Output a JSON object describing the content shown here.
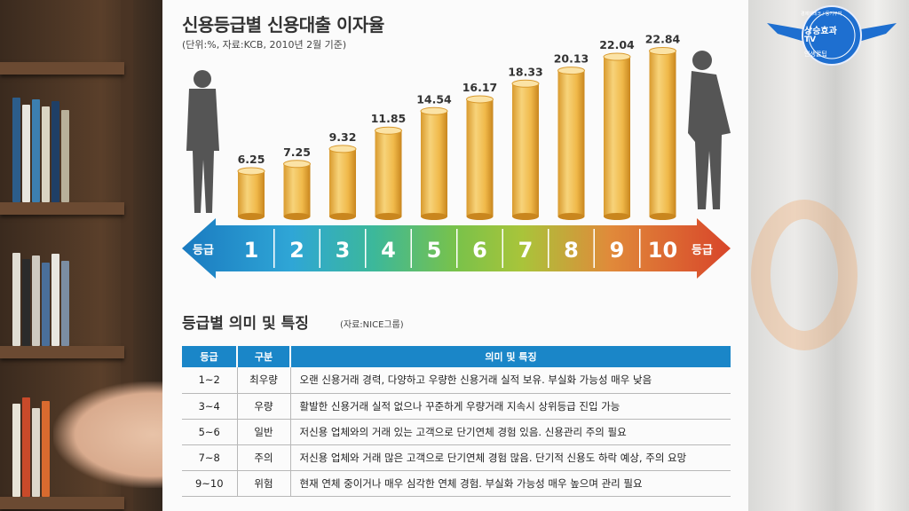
{
  "chart_data": {
    "type": "bar",
    "title": "신용등급별 신용대출 이자율",
    "subtitle": "(단위:%, 자료:KCB, 2010년 2월 기준)",
    "categories": [
      "1",
      "2",
      "3",
      "4",
      "5",
      "6",
      "7",
      "8",
      "9",
      "10"
    ],
    "values": [
      6.25,
      7.25,
      9.32,
      11.85,
      14.54,
      16.17,
      18.33,
      20.13,
      22.04,
      22.84
    ],
    "value_labels": [
      "6.25",
      "7.25",
      "9.32",
      "11.85",
      "14.54",
      "16.17",
      "18.33",
      "20.13",
      "22.04",
      "22.84"
    ],
    "axis_end_label_left": "등급",
    "axis_end_label_right": "등급",
    "ylim": [
      0,
      24
    ],
    "grid": false,
    "bar_color": "#f2c15a",
    "arrow_colors": [
      "#1a7ac0",
      "#2fa6d6",
      "#3cb89a",
      "#79c24a",
      "#a9c43a",
      "#e08a3a",
      "#d8452a"
    ]
  },
  "table_section": {
    "title": "등급별 의미 및 특징",
    "source": "(자료:NICE그룹)",
    "headers": [
      "등급",
      "구분",
      "의미 및 특징"
    ],
    "rows": [
      {
        "grade": "1~2",
        "category": "최우량",
        "desc": "오랜 신용거래 경력, 다양하고 우량한 신용거래 실적 보유. 부실화 가능성 매우 낮음"
      },
      {
        "grade": "3~4",
        "category": "우량",
        "desc": "활발한 신용거래 실적 없으나 꾸준하게 우량거래 지속시 상위등급 진입 가능"
      },
      {
        "grade": "5~6",
        "category": "일반",
        "desc": "저신용 업체와의 거래 있는 고객으로 단기연체 경험 있음. 신용관리 주의 필요"
      },
      {
        "grade": "7~8",
        "category": "주의",
        "desc": "저신용 업체와 거래 많은 고객으로 단기연체 경험 많음. 단기적 신용도 하락 예상, 주의 요망"
      },
      {
        "grade": "9~10",
        "category": "위험",
        "desc": "현재 연체 중이거나 매우 심각한 연체 경험. 부실화 가능성 매우 높으며 관리 필요"
      }
    ]
  },
  "badge": {
    "main": "상승효과",
    "tv": "TV",
    "top": "경제재테크 / 동기부여",
    "sub": "인생꿀팁",
    "color": "#1e6fd0"
  }
}
